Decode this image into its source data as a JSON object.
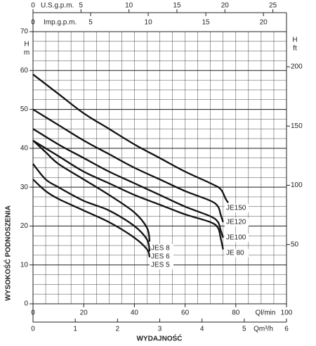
{
  "chart_data": {
    "type": "line",
    "x_label": "WYDAJNOŚĆ",
    "y_label": "WYSOKOŚĆ PODNOSZENIA",
    "y_symbol": "H",
    "y_unit": "m",
    "y2_symbol": "H",
    "y2_unit": "ft",
    "x_unit_label": "Ql/min",
    "xlim": [
      0,
      100
    ],
    "xticks": [
      0,
      20,
      40,
      60,
      80,
      100
    ],
    "ylim": [
      0,
      70
    ],
    "yticks": [
      0,
      10,
      20,
      30,
      40,
      50,
      60,
      70
    ],
    "y2lim": [
      0,
      229.66
    ],
    "y2ticks": [
      50,
      100,
      150,
      200
    ],
    "top_axes": [
      {
        "label": "U.S.g.p.m.",
        "lim": [
          0,
          26.42
        ],
        "ticks": [
          0,
          5,
          10,
          15,
          20,
          25
        ]
      },
      {
        "label": "Imp.g.p.m.",
        "lim": [
          0,
          22
        ],
        "ticks": [
          0,
          5,
          10,
          15,
          20
        ]
      }
    ],
    "bottom_axis2": {
      "label": "Qm³/h",
      "lim": [
        0,
        6
      ],
      "ticks": [
        0,
        1,
        2,
        3,
        4,
        5,
        6
      ]
    },
    "grid": true,
    "grid_x_step": 5,
    "grid_y_step": 2.5,
    "series": [
      {
        "name": "JE150",
        "color": "#111111",
        "x": [
          0,
          10,
          20,
          30,
          40,
          50,
          60,
          70,
          74,
          76,
          77
        ],
        "values": [
          59,
          54,
          49,
          45,
          41,
          37.5,
          34,
          31,
          29.5,
          27,
          26
        ]
      },
      {
        "name": "JE120",
        "color": "#111111",
        "x": [
          0,
          10,
          20,
          30,
          40,
          50,
          60,
          70,
          73,
          74,
          75
        ],
        "values": [
          50,
          46,
          42,
          38.5,
          35,
          32,
          29,
          26.5,
          25,
          23,
          21
        ]
      },
      {
        "name": "JE100",
        "color": "#111111",
        "x": [
          0,
          10,
          20,
          30,
          40,
          50,
          60,
          70,
          73,
          74,
          75
        ],
        "values": [
          45,
          41,
          37.5,
          34,
          31,
          28,
          25,
          22.5,
          21,
          19,
          17
        ]
      },
      {
        "name": "JE 80",
        "color": "#111111",
        "x": [
          0,
          10,
          20,
          30,
          40,
          50,
          60,
          70,
          73,
          74,
          75
        ],
        "values": [
          42,
          38,
          34,
          31,
          28,
          25.5,
          23,
          21,
          19.5,
          17,
          14
        ]
      },
      {
        "name": "JES 8",
        "color": "#111111",
        "x": [
          0,
          5,
          10,
          20,
          30,
          40,
          45,
          46
        ],
        "values": [
          42,
          39,
          36,
          32,
          28,
          23.5,
          19.5,
          16
        ]
      },
      {
        "name": "JES 6",
        "color": "#111111",
        "x": [
          0,
          5,
          10,
          20,
          30,
          40,
          45,
          46
        ],
        "values": [
          36,
          32,
          30,
          26.5,
          24,
          20,
          16.5,
          13.5
        ]
      },
      {
        "name": "JES 5",
        "color": "#111111",
        "x": [
          0,
          5,
          10,
          20,
          30,
          40,
          45,
          46
        ],
        "values": [
          32,
          29,
          27,
          24,
          21,
          17,
          14,
          12
        ]
      }
    ]
  }
}
